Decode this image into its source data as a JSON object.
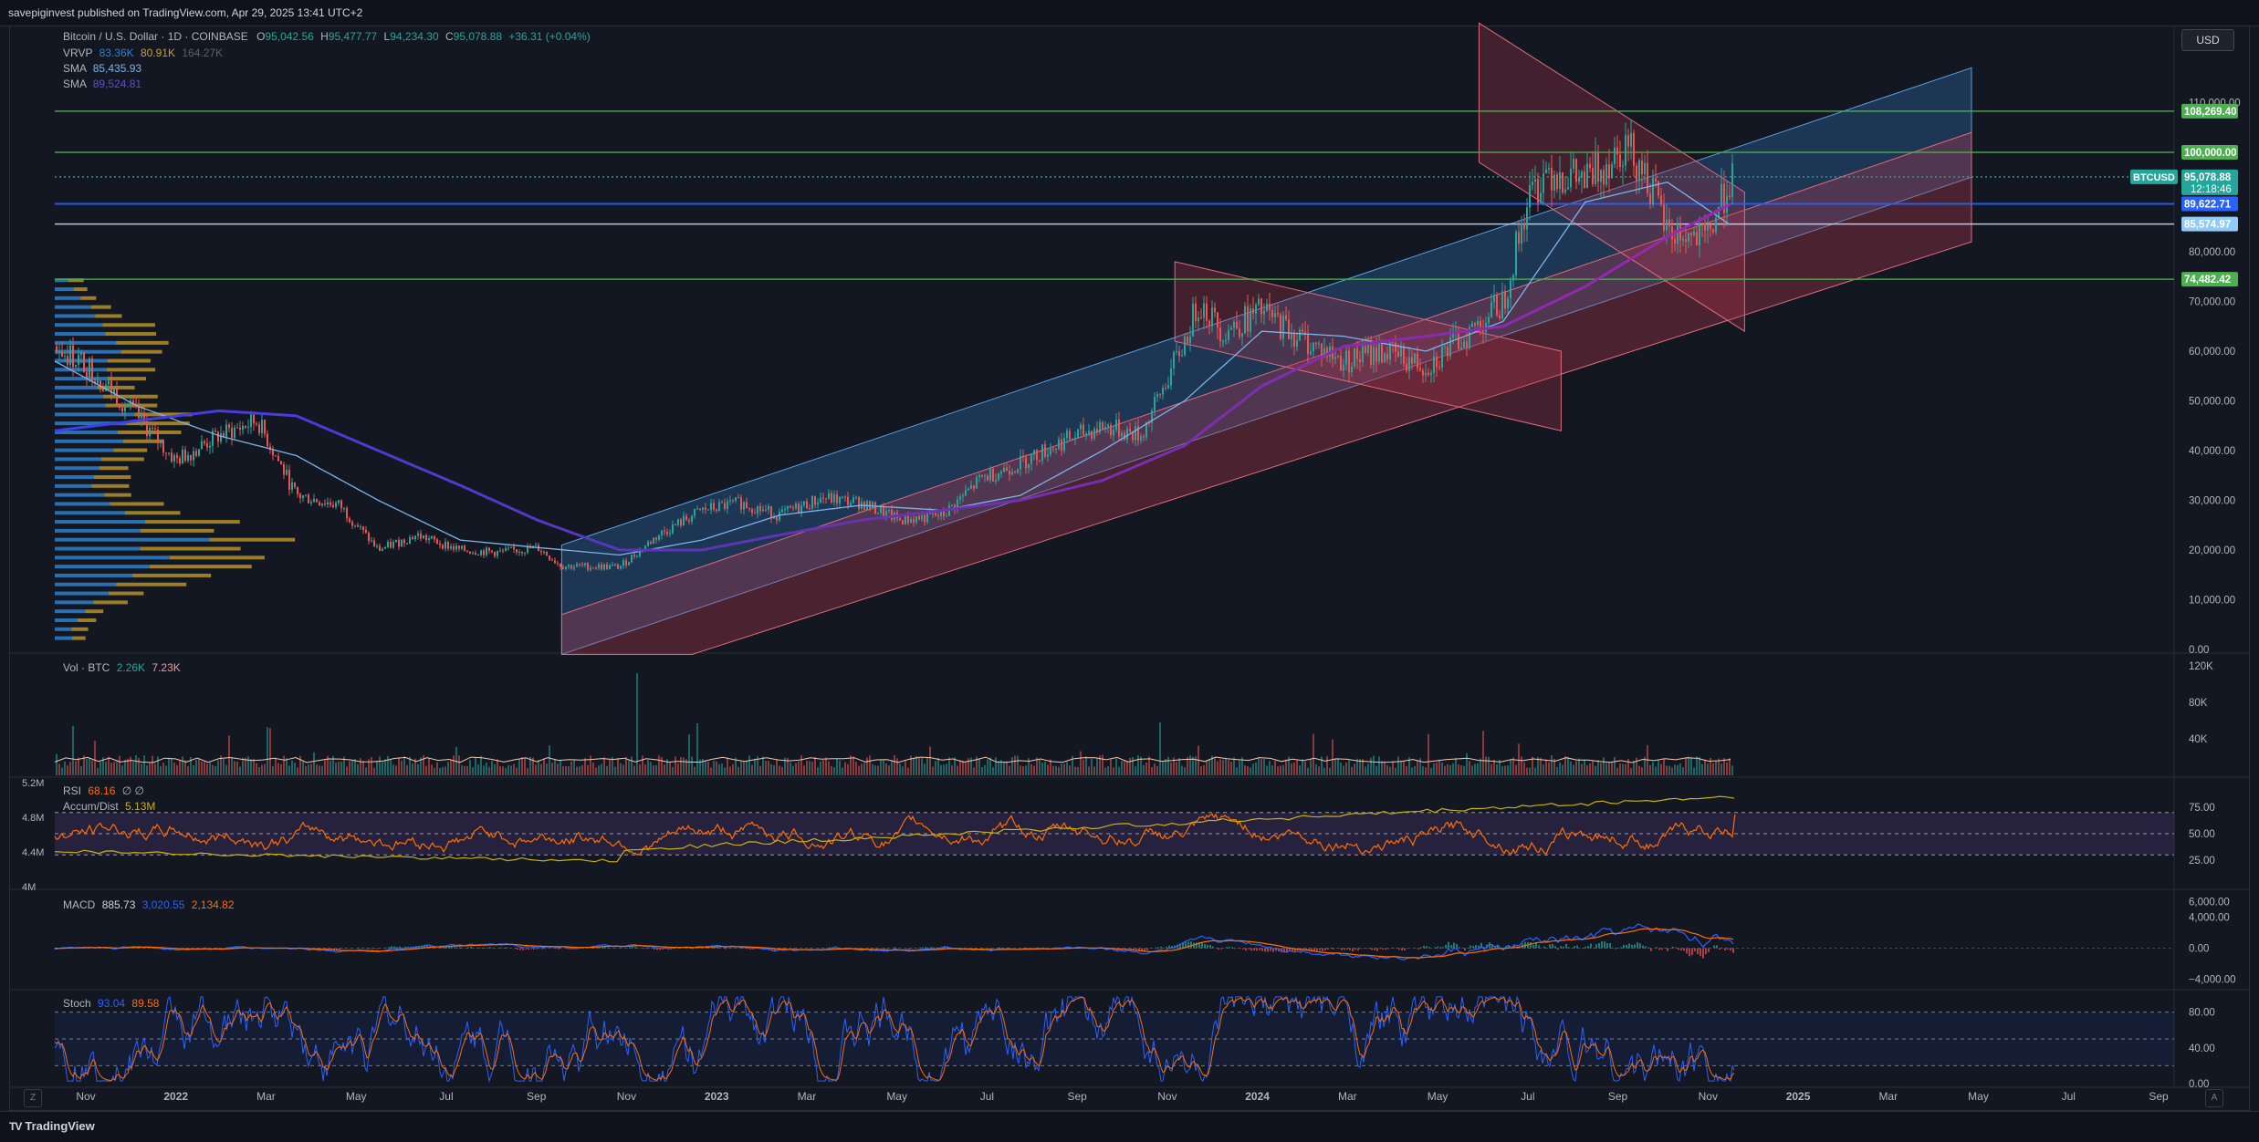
{
  "header": {
    "publisher_text": "savepiginvest published on TradingView.com, Apr 29, 2025 13:41 UTC+2"
  },
  "footer": {
    "brand": "TradingView",
    "logo_glyph": "TV"
  },
  "controls": {
    "currency": "USD",
    "z_label": "Z",
    "a_label": "A"
  },
  "symbol_legend": {
    "name": "Bitcoin / U.S. Dollar · 1D · COINBASE",
    "open_label": "O",
    "open": "95,042.56",
    "high_label": "H",
    "high": "95,477.77",
    "low_label": "L",
    "low": "94,234.30",
    "close_label": "C",
    "close": "95,078.88",
    "change": "+36.31 (+0.04%)",
    "vrvp_label": "VRVP",
    "vrvp_v1": "83.36K",
    "vrvp_v2": "80.91K",
    "vrvp_v3": "164.27K",
    "sma1_label": "SMA",
    "sma1_value": "85,435.93",
    "sma2_label": "SMA",
    "sma2_value": "89,524.81"
  },
  "panes": {
    "volume": {
      "label": "Vol · BTC",
      "v1": "2.26K",
      "v2": "7.23K"
    },
    "rsi": {
      "label": "RSI",
      "value": "68.16",
      "extra": "∅ ∅",
      "ad_label": "Accum/Dist",
      "ad_value": "5.13M"
    },
    "macd": {
      "label": "MACD",
      "v1": "885.73",
      "v2": "3,020.55",
      "v3": "2,134.82"
    },
    "stoch": {
      "label": "Stoch",
      "v1": "93.04",
      "v2": "89.58"
    }
  },
  "colors": {
    "background": "#131722",
    "up": "#26a69a",
    "down": "#ef5350",
    "sma_fast": "#7eb3e8",
    "sma_slow": "#9c27b0",
    "blue_line": "#2962ff",
    "level_green": "#4caf50",
    "rsi_line": "#ff6d00",
    "accum": "#c9b10c",
    "vrvp_up": "#2f80c9",
    "vrvp_down": "#c9a227",
    "channel_blue": "#2f6fb3",
    "channel_red": "#b2364a"
  },
  "chart_data": [
    {
      "type": "line",
      "title": "Bitcoin / U.S. Dollar · 1D · COINBASE",
      "x_tick_labels": [
        "Nov",
        "2022",
        "Mar",
        "May",
        "Jul",
        "Sep",
        "Nov",
        "2023",
        "Mar",
        "May",
        "Jul",
        "Sep",
        "Nov",
        "2024",
        "Mar",
        "May",
        "Jul",
        "Sep",
        "Nov",
        "2025",
        "Mar",
        "May",
        "Jul",
        "Sep"
      ],
      "y_tick_labels": [
        "110,000.00",
        "80,000.00",
        "70,000.00",
        "60,000.00",
        "50,000.00",
        "40,000.00",
        "30,000.00",
        "20,000.00",
        "10,000.00",
        "0.00"
      ],
      "ylim": [
        0,
        120000
      ],
      "price_labels": [
        {
          "value": "108,269.40",
          "color": "#4caf50"
        },
        {
          "value": "100,000.00",
          "color": "#4caf50"
        },
        {
          "value": "95,078.88",
          "color": "#26a69a",
          "symbol": "BTCUSD",
          "countdown": "12:18:46"
        },
        {
          "value": "89,622.71",
          "color": "#2962ff"
        },
        {
          "value": "85,574.97",
          "color": "#90caf9"
        },
        {
          "value": "74,482.42",
          "color": "#4caf50"
        }
      ],
      "horizontal_levels": [
        108269.4,
        100000,
        95078.88,
        89622.71,
        85574.97,
        74482.42
      ],
      "series": [
        {
          "name": "BTCUSD",
          "x": [
            2021.83,
            2021.9,
            2022.0,
            2022.08,
            2022.17,
            2022.25,
            2022.33,
            2022.42,
            2022.5,
            2022.58,
            2022.67,
            2022.75,
            2022.83,
            2022.88,
            2023.0,
            2023.08,
            2023.17,
            2023.25,
            2023.33,
            2023.42,
            2023.5,
            2023.58,
            2023.67,
            2023.75,
            2023.83,
            2023.92,
            2024.0,
            2024.08,
            2024.17,
            2024.2,
            2024.25,
            2024.33,
            2024.42,
            2024.5,
            2024.58,
            2024.67,
            2024.75,
            2024.83,
            2024.88,
            2024.92,
            2025.0,
            2025.08,
            2025.12,
            2025.17,
            2025.25,
            2025.3
          ],
          "values": [
            61000,
            57000,
            47000,
            38000,
            43000,
            46000,
            31000,
            29000,
            20000,
            23000,
            20000,
            19500,
            20500,
            16800,
            16600,
            23000,
            28000,
            29500,
            27000,
            30500,
            29500,
            26000,
            27000,
            34500,
            37500,
            42000,
            45000,
            43000,
            62000,
            70000,
            64000,
            68000,
            62000,
            58000,
            60000,
            57000,
            63000,
            70000,
            90000,
            97000,
            94000,
            102000,
            97000,
            84000,
            82000,
            95000
          ]
        },
        {
          "name": "SMA",
          "x": [
            2021.83,
            2022.0,
            2022.17,
            2022.33,
            2022.5,
            2022.67,
            2022.83,
            2023.0,
            2023.17,
            2023.33,
            2023.5,
            2023.67,
            2023.83,
            2024.0,
            2024.17,
            2024.33,
            2024.5,
            2024.67,
            2024.83,
            2025.0,
            2025.17,
            2025.3
          ],
          "values": [
            58000,
            49000,
            43000,
            39000,
            30000,
            22000,
            20500,
            19000,
            22000,
            27000,
            29000,
            28000,
            31000,
            40000,
            50000,
            64000,
            63000,
            60000,
            66000,
            90000,
            94000,
            85435.93
          ]
        },
        {
          "name": "SMA",
          "x": [
            2021.83,
            2022.0,
            2022.17,
            2022.33,
            2022.5,
            2022.67,
            2022.83,
            2023.0,
            2023.17,
            2023.33,
            2023.5,
            2023.67,
            2023.83,
            2024.0,
            2024.17,
            2024.33,
            2024.5,
            2024.67,
            2024.83,
            2025.0,
            2025.17,
            2025.3
          ],
          "values": [
            44000,
            46000,
            48000,
            47000,
            40000,
            33000,
            26000,
            20000,
            20000,
            23000,
            26000,
            28000,
            30000,
            34000,
            41000,
            53000,
            61000,
            63000,
            65000,
            73000,
            83000,
            89524.81
          ]
        }
      ]
    },
    {
      "type": "bar",
      "title": "Vol · BTC",
      "y_tick_labels": [
        "120K",
        "80K",
        "40K"
      ],
      "ylim": [
        0,
        120000
      ]
    },
    {
      "type": "line",
      "title": "RSI",
      "y_tick_labels": [
        "75.00",
        "50.00",
        "25.00"
      ],
      "left_tick_labels": [
        "5.2M",
        "4.8M",
        "4.4M",
        "4M"
      ],
      "ylim": [
        0,
        100
      ],
      "last_value": 68.16,
      "bands": [
        70,
        50,
        30
      ]
    },
    {
      "type": "line",
      "title": "MACD",
      "y_tick_labels": [
        "6,000.00",
        "4,000.00",
        "0.00",
        "−4,000.00"
      ],
      "ylim": [
        -5000,
        7000
      ],
      "last_values": [
        885.73,
        3020.55,
        2134.82
      ]
    },
    {
      "type": "line",
      "title": "Stoch",
      "y_tick_labels": [
        "80.00",
        "40.00",
        "0.00"
      ],
      "ylim": [
        0,
        100
      ],
      "last_values": [
        93.04,
        89.58
      ],
      "bands": [
        80,
        50,
        20
      ]
    }
  ]
}
